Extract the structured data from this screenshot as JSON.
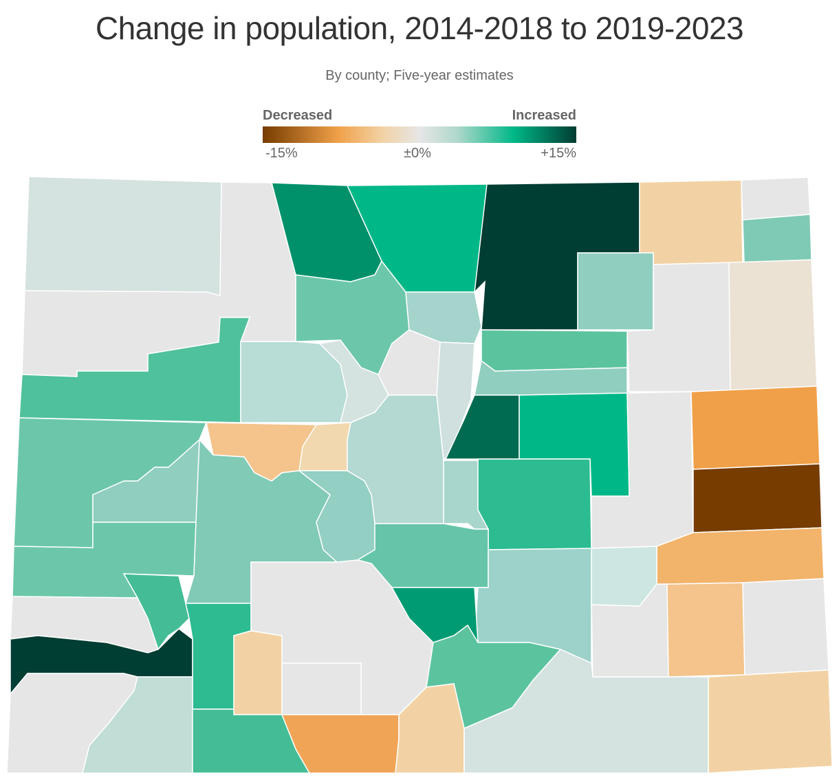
{
  "title": "Change in population, 2014-2018 to 2019-2023",
  "subtitle": "By county; Five-year estimates",
  "legend": {
    "low_label": "Decreased",
    "high_label": "Increased",
    "ticks": [
      "-15%",
      "±0%",
      "+15%"
    ],
    "colors": [
      "#763c00",
      "#f0a048",
      "#f2d2a4",
      "#e6e6e6",
      "#b0d8cc",
      "#00b887",
      "#003d32"
    ]
  },
  "chart_data": {
    "type": "choropleth",
    "region": "Colorado",
    "unit": "percent change in population",
    "scale_min": -15,
    "scale_max": 15,
    "palette": {
      "dec_strong": "#763c00",
      "dec_mid": "#f0a048",
      "dec_light": "#f2d2a4",
      "neutral": "#e6e6e6",
      "inc_light": "#b0d8cc",
      "inc_mid": "#6cc7aa",
      "inc_high": "#00b887",
      "inc_strong": "#003d32"
    }
  }
}
